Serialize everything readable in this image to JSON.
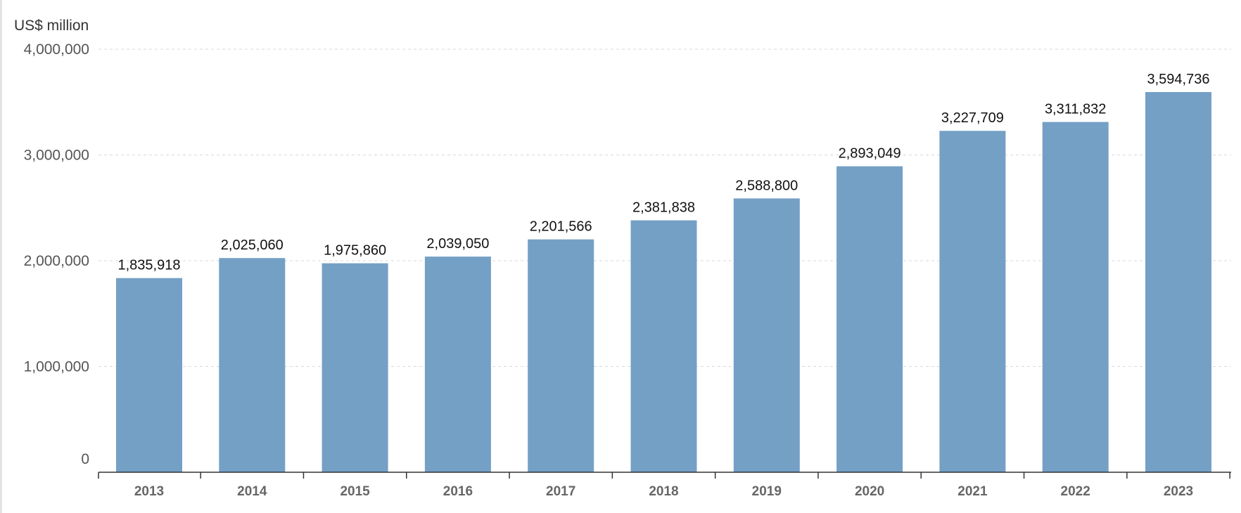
{
  "chart_data": {
    "type": "bar",
    "title": "",
    "unit_label": "US$ million",
    "xlabel": "",
    "ylabel": "",
    "categories": [
      "2013",
      "2014",
      "2015",
      "2016",
      "2017",
      "2018",
      "2019",
      "2020",
      "2021",
      "2022",
      "2023"
    ],
    "values": [
      1835918,
      2025060,
      1975860,
      2039050,
      2201566,
      2381838,
      2588800,
      2893049,
      3227709,
      3311832,
      3594736
    ],
    "data_labels": [
      "1,835,918",
      "2,025,060",
      "1,975,860",
      "2,039,050",
      "2,201,566",
      "2,381,838",
      "2,588,800",
      "2,893,049",
      "3,227,709",
      "3,311,832",
      "3,594,736"
    ],
    "ylim": [
      0,
      4000000
    ],
    "y_ticks": [
      0,
      1000000,
      2000000,
      3000000,
      4000000
    ],
    "y_tick_labels": [
      "0",
      "1,000,000",
      "2,000,000",
      "3,000,000",
      "4,000,000"
    ],
    "grid": true,
    "legend": "none",
    "bar_color": "#74a0c6"
  }
}
